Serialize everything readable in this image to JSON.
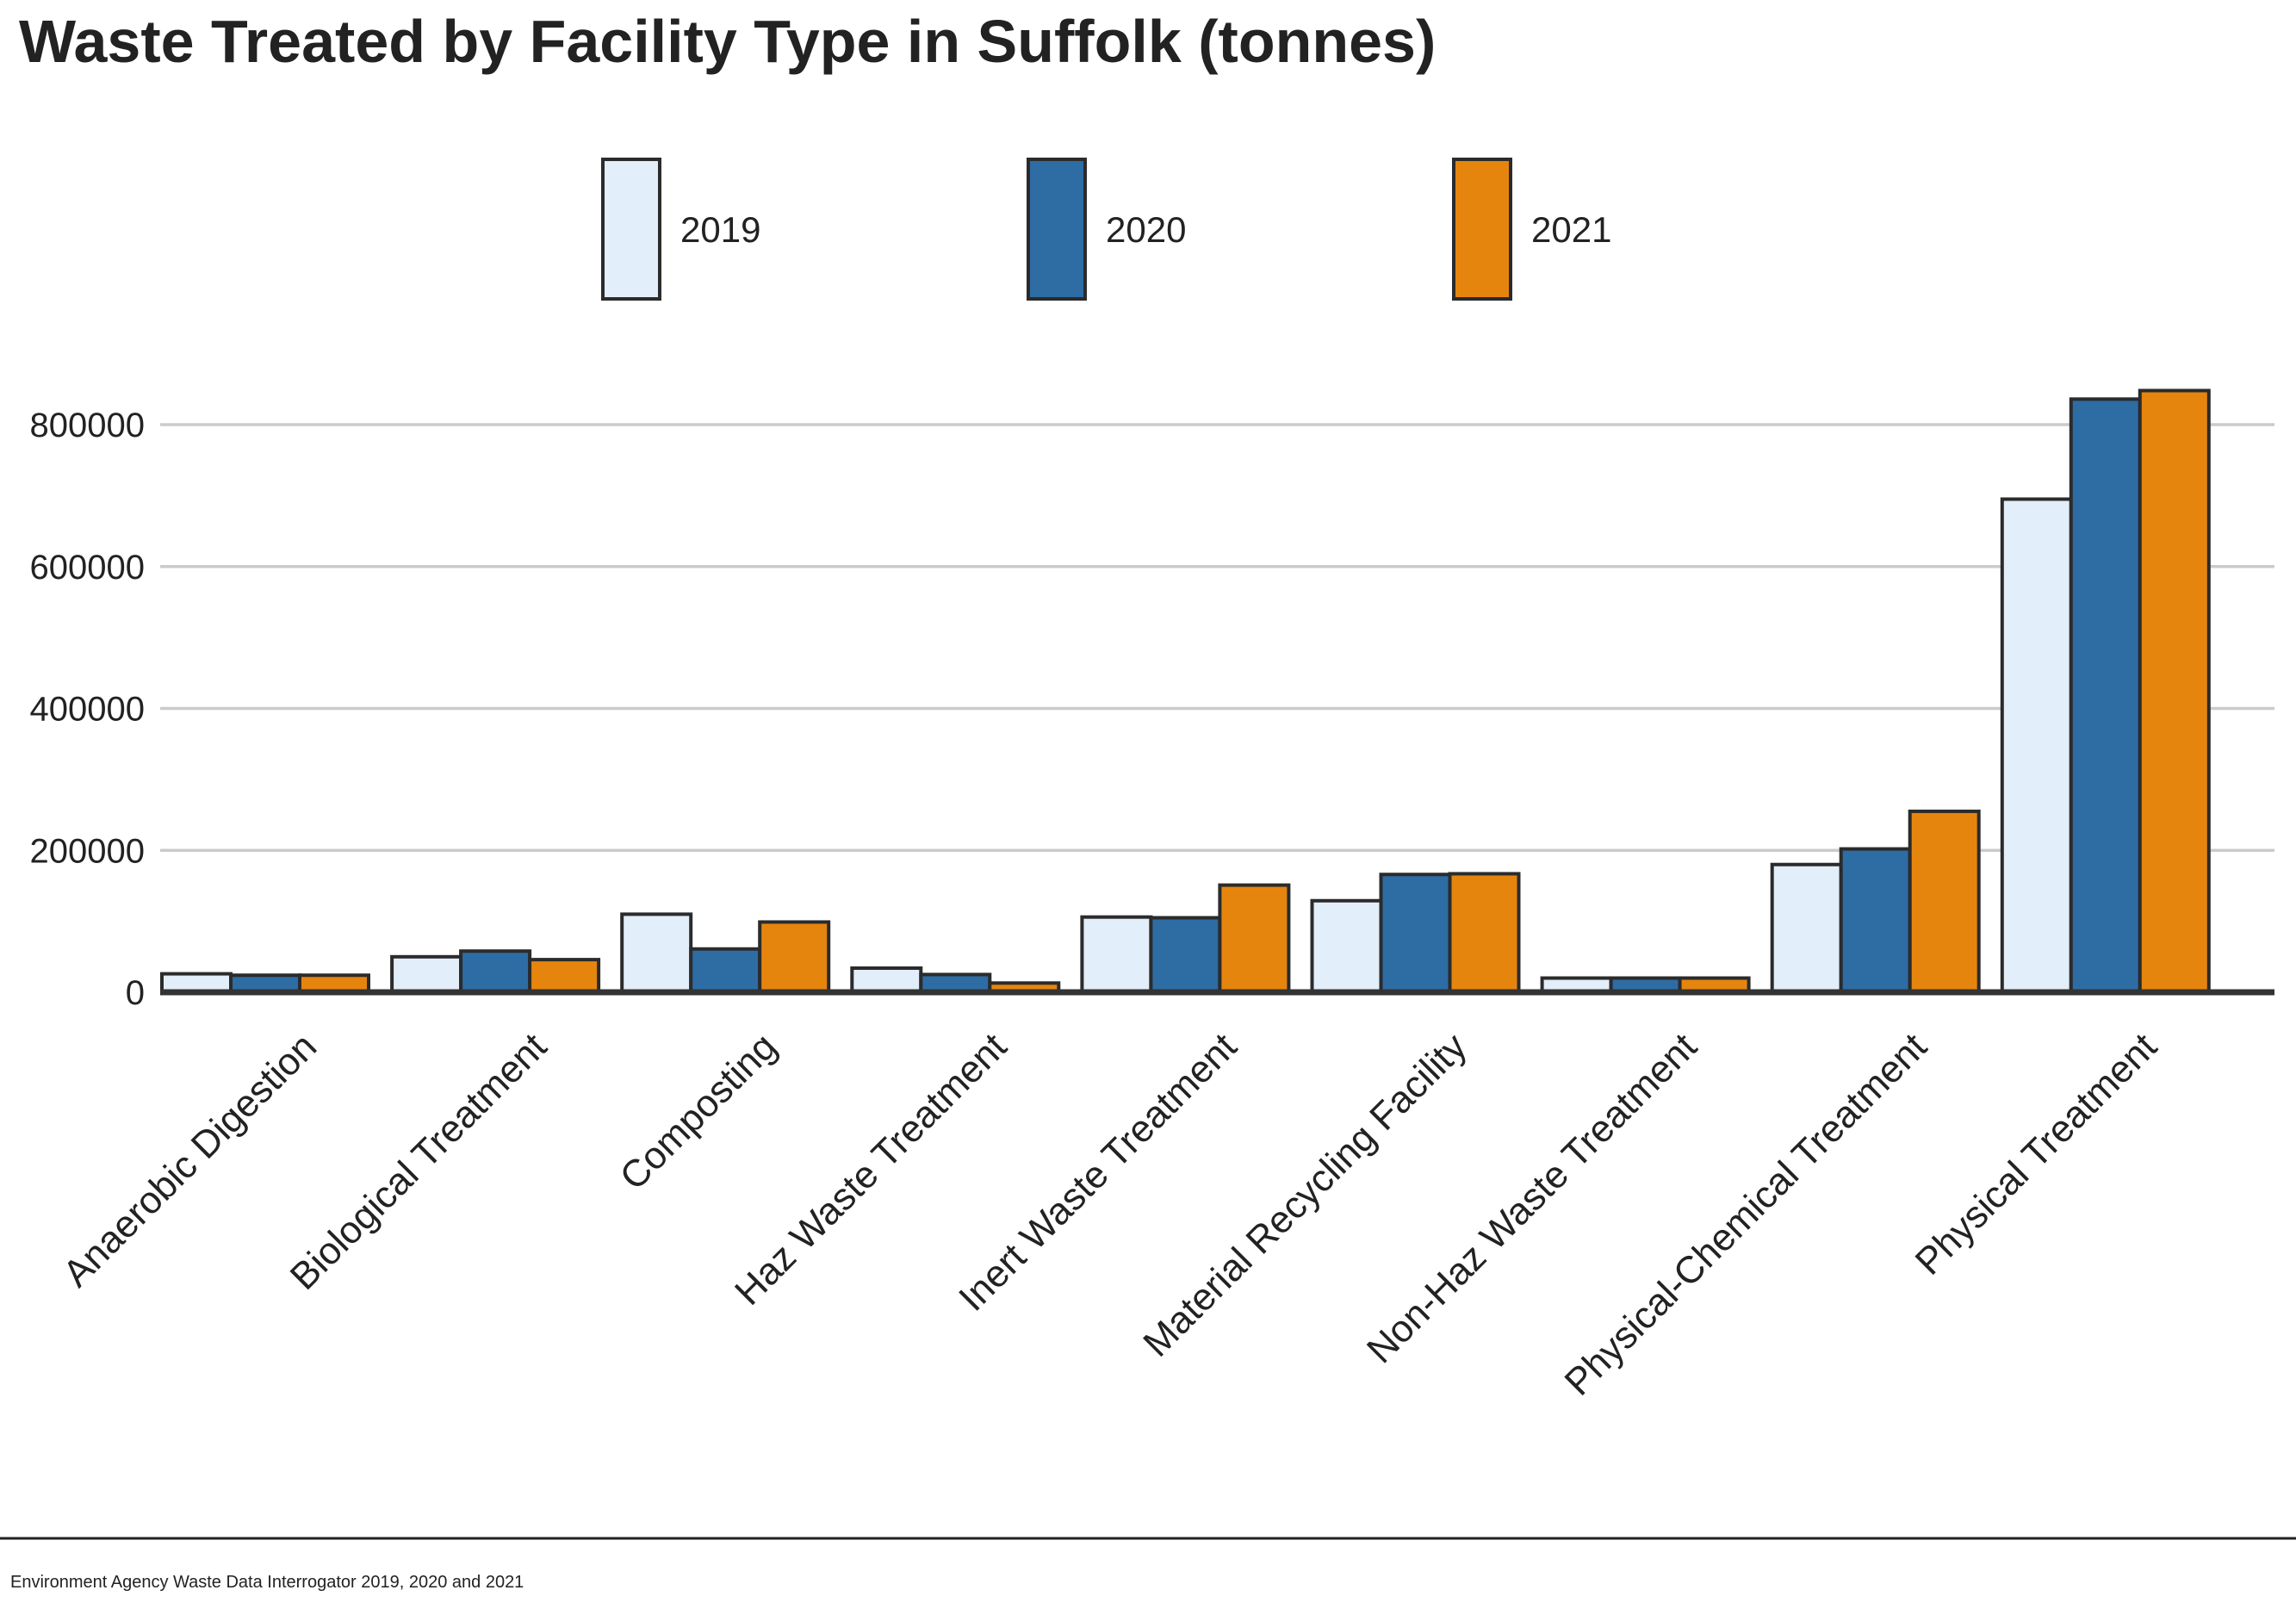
{
  "chart_data": {
    "type": "bar",
    "title": "Waste Treated by Facility Type in Suffolk (tonnes)",
    "xlabel": "",
    "ylabel": "",
    "ylim": [
      0,
      850000
    ],
    "yticks": [
      0,
      200000,
      400000,
      600000,
      800000
    ],
    "ytick_labels": [
      "0",
      "200000",
      "400000",
      "600000",
      "800000"
    ],
    "grid": true,
    "legend_position": "top-center",
    "categories": [
      "Anaerobic Digestion",
      "Biological Treatment",
      "Composting",
      "Haz Waste Treatment",
      "Inert Waste Treatment",
      "Material Recycling Facility",
      "Non-Haz Waste Treatment",
      "Physical-Chemical Treatment",
      "Physical Treatment"
    ],
    "series": [
      {
        "name": "2019",
        "color": "#e2eef9",
        "values": [
          26000,
          50000,
          110000,
          34000,
          106000,
          129000,
          20000,
          180000,
          695000
        ]
      },
      {
        "name": "2020",
        "color": "#2e6ca4",
        "values": [
          24000,
          58000,
          61000,
          25000,
          105000,
          166000,
          20000,
          202000,
          836000
        ]
      },
      {
        "name": "2021",
        "color": "#e6850e",
        "values": [
          24000,
          46000,
          99000,
          13000,
          151000,
          167000,
          20000,
          255000,
          848000
        ]
      }
    ]
  },
  "source_text": "Environment Agency Waste Data Interrogator 2019, 2020 and 2021"
}
